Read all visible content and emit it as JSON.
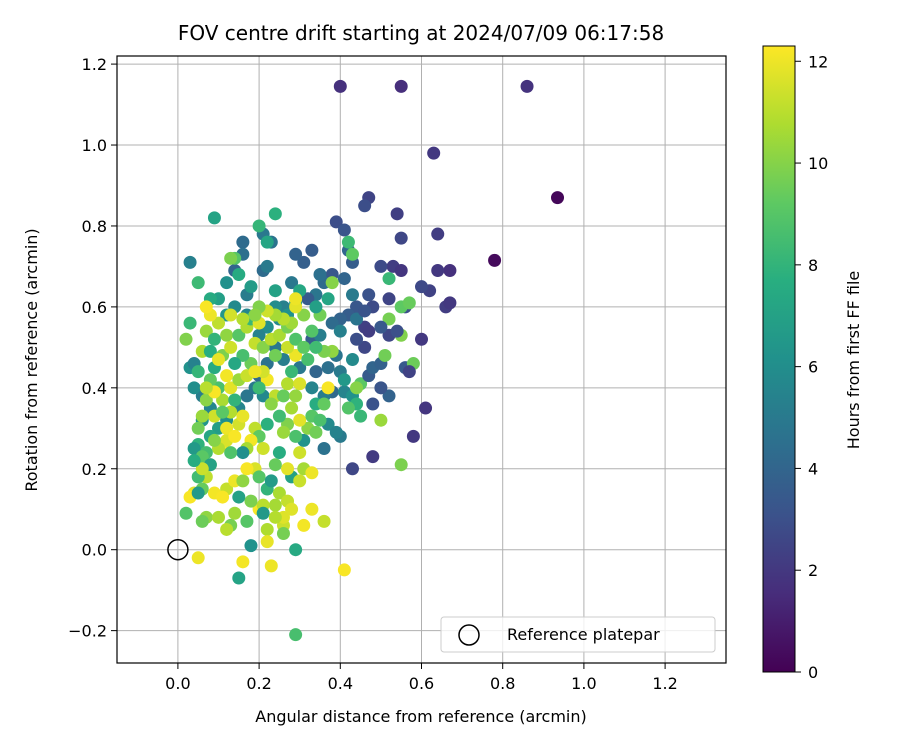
{
  "chart_data": {
    "type": "scatter",
    "title": "FOV centre drift starting at 2024/07/09 06:17:58",
    "xlabel": "Angular distance from reference (arcmin)",
    "ylabel": "Rotation from reference (arcmin)",
    "xlim": [
      -0.15,
      1.35
    ],
    "ylim": [
      -0.28,
      1.22
    ],
    "xticks": [
      0.0,
      0.2,
      0.4,
      0.6,
      0.8,
      1.0,
      1.2
    ],
    "yticks": [
      -0.2,
      0.0,
      0.2,
      0.4,
      0.6,
      0.8,
      1.0,
      1.2
    ],
    "xtick_labels": [
      "0.0",
      "0.2",
      "0.4",
      "0.6",
      "0.8",
      "1.0",
      "1.2"
    ],
    "ytick_labels": [
      "−0.2",
      "0.0",
      "0.2",
      "0.4",
      "0.6",
      "0.8",
      "1.0",
      "1.2"
    ],
    "grid": true,
    "colormap": "viridis",
    "colorbar": {
      "label": "Hours from first FF file",
      "range": [
        0,
        12.3
      ],
      "ticks": [
        0,
        2,
        4,
        6,
        8,
        10,
        12
      ],
      "tick_labels": [
        "0",
        "2",
        "4",
        "6",
        "8",
        "10",
        "12"
      ]
    },
    "reference_point": {
      "x": 0.0,
      "y": 0.0,
      "label": "Reference platepar",
      "marker": "open-circle"
    },
    "legend_placement": "lower-right",
    "points": [
      [
        0.935,
        0.87,
        0.2
      ],
      [
        0.78,
        0.715,
        0.3
      ],
      [
        0.86,
        1.145,
        1.8
      ],
      [
        0.55,
        1.145,
        1.6
      ],
      [
        0.4,
        1.145,
        1.7
      ],
      [
        0.63,
        0.98,
        2.0
      ],
      [
        0.54,
        0.83,
        2.3
      ],
      [
        0.47,
        0.87,
        2.5
      ],
      [
        0.46,
        0.85,
        2.9
      ],
      [
        0.64,
        0.78,
        2.2
      ],
      [
        0.55,
        0.77,
        2.6
      ],
      [
        0.67,
        0.69,
        1.7
      ],
      [
        0.64,
        0.69,
        2.0
      ],
      [
        0.66,
        0.6,
        2.2
      ],
      [
        0.67,
        0.61,
        2.0
      ],
      [
        0.62,
        0.64,
        2.4
      ],
      [
        0.6,
        0.52,
        2.0
      ],
      [
        0.61,
        0.35,
        1.9
      ],
      [
        0.58,
        0.28,
        2.0
      ],
      [
        0.48,
        0.23,
        2.1
      ],
      [
        0.43,
        0.2,
        2.6
      ],
      [
        0.48,
        0.36,
        3.1
      ],
      [
        0.52,
        0.38,
        3.9
      ],
      [
        0.56,
        0.45,
        3.4
      ],
      [
        0.53,
        0.7,
        2.2
      ],
      [
        0.55,
        0.69,
        1.9
      ],
      [
        0.5,
        0.7,
        2.8
      ],
      [
        0.52,
        0.62,
        2.5
      ],
      [
        0.56,
        0.6,
        3.0
      ],
      [
        0.46,
        0.5,
        2.6
      ],
      [
        0.46,
        0.55,
        2.3
      ],
      [
        0.44,
        0.52,
        2.9
      ],
      [
        0.47,
        0.63,
        3.1
      ],
      [
        0.44,
        0.6,
        3.3
      ],
      [
        0.42,
        0.58,
        3.6
      ],
      [
        0.4,
        0.57,
        3.9
      ],
      [
        0.39,
        0.81,
        2.9
      ],
      [
        0.41,
        0.79,
        3.2
      ],
      [
        0.42,
        0.74,
        4.1
      ],
      [
        0.43,
        0.71,
        3.6
      ],
      [
        0.38,
        0.68,
        3.3
      ],
      [
        0.41,
        0.67,
        4.0
      ],
      [
        0.36,
        0.66,
        4.3
      ],
      [
        0.34,
        0.63,
        4.8
      ],
      [
        0.32,
        0.62,
        3.5
      ],
      [
        0.31,
        0.71,
        3.7
      ],
      [
        0.29,
        0.73,
        3.9
      ],
      [
        0.33,
        0.74,
        3.6
      ],
      [
        0.35,
        0.68,
        4.5
      ],
      [
        0.38,
        0.56,
        4.3
      ],
      [
        0.39,
        0.48,
        4.7
      ],
      [
        0.37,
        0.45,
        4.5
      ],
      [
        0.4,
        0.44,
        5.0
      ],
      [
        0.38,
        0.39,
        4.2
      ],
      [
        0.36,
        0.38,
        5.2
      ],
      [
        0.41,
        0.39,
        5.5
      ],
      [
        0.37,
        0.31,
        5.8
      ],
      [
        0.36,
        0.25,
        4.6
      ],
      [
        0.4,
        0.28,
        5.0
      ],
      [
        0.39,
        0.29,
        5.4
      ],
      [
        0.34,
        0.44,
        4.0
      ],
      [
        0.33,
        0.52,
        3.7
      ],
      [
        0.35,
        0.53,
        5.2
      ],
      [
        0.33,
        0.4,
        5.5
      ],
      [
        0.3,
        0.45,
        4.9
      ],
      [
        0.28,
        0.66,
        4.9
      ],
      [
        0.26,
        0.6,
        5.3
      ],
      [
        0.24,
        0.6,
        5.9
      ],
      [
        0.23,
        0.76,
        4.7
      ],
      [
        0.21,
        0.78,
        4.9
      ],
      [
        0.16,
        0.76,
        4.3
      ],
      [
        0.14,
        0.69,
        4.0
      ],
      [
        0.16,
        0.73,
        4.5
      ],
      [
        0.17,
        0.63,
        5.1
      ],
      [
        0.17,
        0.58,
        5.6
      ],
      [
        0.21,
        0.69,
        4.3
      ],
      [
        0.22,
        0.7,
        5.0
      ],
      [
        0.14,
        0.6,
        5.8
      ],
      [
        0.12,
        0.58,
        6.4
      ],
      [
        0.1,
        0.62,
        6.9
      ],
      [
        0.08,
        0.62,
        7.5
      ],
      [
        0.03,
        0.71,
        5.3
      ],
      [
        0.09,
        0.82,
        7.1
      ],
      [
        0.2,
        0.8,
        8.1
      ],
      [
        0.24,
        0.83,
        7.8
      ],
      [
        0.22,
        0.76,
        7.2
      ],
      [
        0.14,
        0.72,
        9.0
      ],
      [
        0.13,
        0.72,
        9.8
      ],
      [
        0.15,
        0.68,
        7.5
      ],
      [
        0.05,
        0.66,
        8.3
      ],
      [
        0.12,
        0.66,
        6.1
      ],
      [
        0.18,
        0.65,
        6.7
      ],
      [
        0.24,
        0.64,
        7.0
      ],
      [
        0.3,
        0.64,
        7.3
      ],
      [
        0.29,
        0.61,
        6.5
      ],
      [
        0.27,
        0.58,
        6.2
      ],
      [
        0.25,
        0.57,
        5.7
      ],
      [
        0.22,
        0.55,
        6.0
      ],
      [
        0.2,
        0.53,
        5.4
      ],
      [
        0.24,
        0.5,
        4.9
      ],
      [
        0.26,
        0.47,
        5.2
      ],
      [
        0.22,
        0.46,
        4.6
      ],
      [
        0.2,
        0.43,
        4.2
      ],
      [
        0.19,
        0.4,
        5.0
      ],
      [
        0.21,
        0.38,
        5.7
      ],
      [
        0.17,
        0.38,
        4.8
      ],
      [
        0.15,
        0.35,
        5.5
      ],
      [
        0.12,
        0.32,
        6.1
      ],
      [
        0.1,
        0.3,
        6.8
      ],
      [
        0.08,
        0.28,
        7.2
      ],
      [
        0.06,
        0.32,
        6.4
      ],
      [
        0.08,
        0.35,
        5.6
      ],
      [
        0.06,
        0.38,
        5.1
      ],
      [
        0.04,
        0.4,
        6.0
      ],
      [
        0.03,
        0.45,
        6.2
      ],
      [
        0.04,
        0.46,
        5.4
      ],
      [
        0.03,
        0.56,
        8.2
      ],
      [
        0.02,
        0.52,
        9.9
      ],
      [
        0.07,
        0.54,
        10.4
      ],
      [
        0.06,
        0.49,
        10.8
      ],
      [
        0.05,
        0.44,
        8.1
      ],
      [
        0.09,
        0.45,
        7.5
      ],
      [
        0.1,
        0.4,
        8.7
      ],
      [
        0.08,
        0.42,
        9.3
      ],
      [
        0.07,
        0.37,
        10.1
      ],
      [
        0.11,
        0.37,
        10.7
      ],
      [
        0.09,
        0.33,
        11.4
      ],
      [
        0.11,
        0.26,
        12.1
      ],
      [
        0.12,
        0.27,
        11.6
      ],
      [
        0.1,
        0.25,
        10.9
      ],
      [
        0.05,
        0.26,
        7.9
      ],
      [
        0.07,
        0.24,
        8.5
      ],
      [
        0.04,
        0.25,
        6.6
      ],
      [
        0.06,
        0.23,
        9.1
      ],
      [
        0.08,
        0.21,
        10.3
      ],
      [
        0.07,
        0.18,
        11.1
      ],
      [
        0.05,
        0.18,
        8.4
      ],
      [
        0.06,
        0.15,
        9.4
      ],
      [
        0.04,
        0.14,
        11.8
      ],
      [
        0.03,
        0.13,
        12.2
      ],
      [
        0.07,
        0.08,
        10.2
      ],
      [
        0.06,
        0.07,
        9.5
      ],
      [
        0.02,
        0.09,
        8.9
      ],
      [
        0.1,
        0.08,
        10.7
      ],
      [
        0.13,
        0.06,
        9.7
      ],
      [
        0.12,
        0.05,
        11.0
      ],
      [
        0.05,
        -0.02,
        12.0
      ],
      [
        0.16,
        -0.03,
        12.1
      ],
      [
        0.15,
        -0.07,
        7.1
      ],
      [
        0.23,
        -0.04,
        12.0
      ],
      [
        0.18,
        0.01,
        6.2
      ],
      [
        0.22,
        0.05,
        10.8
      ],
      [
        0.26,
        0.06,
        11.3
      ],
      [
        0.29,
        0.0,
        7.4
      ],
      [
        0.29,
        -0.21,
        8.6
      ],
      [
        0.41,
        -0.05,
        12.2
      ],
      [
        0.33,
        0.1,
        12.0
      ],
      [
        0.26,
        0.08,
        11.7
      ],
      [
        0.24,
        0.11,
        10.6
      ],
      [
        0.2,
        0.1,
        12.2
      ],
      [
        0.21,
        0.11,
        11.0
      ],
      [
        0.18,
        0.12,
        9.8
      ],
      [
        0.15,
        0.13,
        7.0
      ],
      [
        0.12,
        0.15,
        11.2
      ],
      [
        0.14,
        0.17,
        12.0
      ],
      [
        0.16,
        0.17,
        10.2
      ],
      [
        0.19,
        0.2,
        11.6
      ],
      [
        0.17,
        0.2,
        12.2
      ],
      [
        0.2,
        0.18,
        9.0
      ],
      [
        0.22,
        0.15,
        8.0
      ],
      [
        0.23,
        0.17,
        6.7
      ],
      [
        0.25,
        0.14,
        10.7
      ],
      [
        0.27,
        0.12,
        11.2
      ],
      [
        0.28,
        0.1,
        11.7
      ],
      [
        0.28,
        0.18,
        7.0
      ],
      [
        0.3,
        0.17,
        11.3
      ],
      [
        0.31,
        0.2,
        10.6
      ],
      [
        0.33,
        0.19,
        12.0
      ],
      [
        0.27,
        0.2,
        11.8
      ],
      [
        0.24,
        0.21,
        9.4
      ],
      [
        0.25,
        0.24,
        7.6
      ],
      [
        0.3,
        0.24,
        11.4
      ],
      [
        0.31,
        0.27,
        6.3
      ],
      [
        0.29,
        0.28,
        8.7
      ],
      [
        0.32,
        0.3,
        10.1
      ],
      [
        0.34,
        0.29,
        9.6
      ],
      [
        0.27,
        0.31,
        9.9
      ],
      [
        0.25,
        0.33,
        8.4
      ],
      [
        0.22,
        0.31,
        7.8
      ],
      [
        0.19,
        0.3,
        11.1
      ],
      [
        0.2,
        0.28,
        9.2
      ],
      [
        0.21,
        0.25,
        11.4
      ],
      [
        0.18,
        0.27,
        12.1
      ],
      [
        0.17,
        0.25,
        10.6
      ],
      [
        0.16,
        0.24,
        6.1
      ],
      [
        0.13,
        0.24,
        8.8
      ],
      [
        0.12,
        0.3,
        12.0
      ],
      [
        0.14,
        0.28,
        12.2
      ],
      [
        0.15,
        0.31,
        11.5
      ],
      [
        0.16,
        0.33,
        11.9
      ],
      [
        0.13,
        0.34,
        10.9
      ],
      [
        0.11,
        0.34,
        9.1
      ],
      [
        0.14,
        0.37,
        8.0
      ],
      [
        0.13,
        0.4,
        11.8
      ],
      [
        0.12,
        0.43,
        12.1
      ],
      [
        0.15,
        0.42,
        10.4
      ],
      [
        0.17,
        0.43,
        11.3
      ],
      [
        0.18,
        0.46,
        9.5
      ],
      [
        0.16,
        0.48,
        8.6
      ],
      [
        0.14,
        0.46,
        7.3
      ],
      [
        0.11,
        0.48,
        9.8
      ],
      [
        0.13,
        0.5,
        11.4
      ],
      [
        0.12,
        0.53,
        10.2
      ],
      [
        0.15,
        0.53,
        9.0
      ],
      [
        0.17,
        0.55,
        10.8
      ],
      [
        0.18,
        0.57,
        8.2
      ],
      [
        0.2,
        0.56,
        11.7
      ],
      [
        0.19,
        0.51,
        11.2
      ],
      [
        0.21,
        0.5,
        10.0
      ],
      [
        0.23,
        0.52,
        11.0
      ],
      [
        0.24,
        0.48,
        9.6
      ],
      [
        0.22,
        0.42,
        12.1
      ],
      [
        0.21,
        0.44,
        11.5
      ],
      [
        0.19,
        0.44,
        12.0
      ],
      [
        0.2,
        0.4,
        8.3
      ],
      [
        0.24,
        0.38,
        11.1
      ],
      [
        0.23,
        0.36,
        10.1
      ],
      [
        0.26,
        0.38,
        9.4
      ],
      [
        0.27,
        0.41,
        10.9
      ],
      [
        0.28,
        0.44,
        8.2
      ],
      [
        0.29,
        0.48,
        12.0
      ],
      [
        0.27,
        0.5,
        11.3
      ],
      [
        0.25,
        0.53,
        10.7
      ],
      [
        0.27,
        0.55,
        9.7
      ],
      [
        0.29,
        0.52,
        8.8
      ],
      [
        0.31,
        0.5,
        9.2
      ],
      [
        0.32,
        0.47,
        8.6
      ],
      [
        0.3,
        0.41,
        11.6
      ],
      [
        0.29,
        0.38,
        10.3
      ],
      [
        0.28,
        0.35,
        10.6
      ],
      [
        0.26,
        0.29,
        10.4
      ],
      [
        0.3,
        0.32,
        11.8
      ],
      [
        0.33,
        0.33,
        9.0
      ],
      [
        0.35,
        0.32,
        8.7
      ],
      [
        0.34,
        0.36,
        7.6
      ],
      [
        0.36,
        0.36,
        9.3
      ],
      [
        0.37,
        0.4,
        12.2
      ],
      [
        0.38,
        0.49,
        10.2
      ],
      [
        0.36,
        0.49,
        9.8
      ],
      [
        0.34,
        0.5,
        8.4
      ],
      [
        0.33,
        0.54,
        8.9
      ],
      [
        0.35,
        0.58,
        9.6
      ],
      [
        0.37,
        0.62,
        7.2
      ],
      [
        0.34,
        0.6,
        6.9
      ],
      [
        0.31,
        0.58,
        10.0
      ],
      [
        0.29,
        0.6,
        11.8
      ],
      [
        0.29,
        0.62,
        12.0
      ],
      [
        0.28,
        0.56,
        10.5
      ],
      [
        0.26,
        0.57,
        11.0
      ],
      [
        0.24,
        0.58,
        10.6
      ],
      [
        0.22,
        0.59,
        11.4
      ],
      [
        0.2,
        0.6,
        9.9
      ],
      [
        0.19,
        0.58,
        10.1
      ],
      [
        0.16,
        0.57,
        10.9
      ],
      [
        0.13,
        0.58,
        11.5
      ],
      [
        0.1,
        0.56,
        11.1
      ],
      [
        0.08,
        0.58,
        12.0
      ],
      [
        0.07,
        0.6,
        12.2
      ],
      [
        0.09,
        0.52,
        8.0
      ],
      [
        0.08,
        0.49,
        7.7
      ],
      [
        0.1,
        0.47,
        11.9
      ],
      [
        0.09,
        0.39,
        12.2
      ],
      [
        0.07,
        0.4,
        11.0
      ],
      [
        0.06,
        0.33,
        10.4
      ],
      [
        0.05,
        0.3,
        9.6
      ],
      [
        0.09,
        0.27,
        10.0
      ],
      [
        0.08,
        0.21,
        7.0
      ],
      [
        0.06,
        0.2,
        11.3
      ],
      [
        0.04,
        0.22,
        7.6
      ],
      [
        0.05,
        0.14,
        6.6
      ],
      [
        0.09,
        0.14,
        12.1
      ],
      [
        0.11,
        0.13,
        12.2
      ],
      [
        0.14,
        0.09,
        10.5
      ],
      [
        0.17,
        0.07,
        9.0
      ],
      [
        0.21,
        0.09,
        6.6
      ],
      [
        0.24,
        0.08,
        10.9
      ],
      [
        0.22,
        0.02,
        11.9
      ],
      [
        0.26,
        0.04,
        9.7
      ],
      [
        0.31,
        0.06,
        12.1
      ],
      [
        0.36,
        0.07,
        11.2
      ],
      [
        0.43,
        0.63,
        5.0
      ],
      [
        0.44,
        0.57,
        4.7
      ],
      [
        0.4,
        0.54,
        5.3
      ],
      [
        0.43,
        0.47,
        5.8
      ],
      [
        0.41,
        0.42,
        6.5
      ],
      [
        0.45,
        0.41,
        9.1
      ],
      [
        0.43,
        0.38,
        6.2
      ],
      [
        0.44,
        0.36,
        7.9
      ],
      [
        0.42,
        0.35,
        8.9
      ],
      [
        0.45,
        0.33,
        8.2
      ],
      [
        0.47,
        0.43,
        3.5
      ],
      [
        0.48,
        0.45,
        4.0
      ],
      [
        0.5,
        0.46,
        3.8
      ],
      [
        0.5,
        0.4,
        3.2
      ],
      [
        0.51,
        0.48,
        9.6
      ],
      [
        0.52,
        0.57,
        9.7
      ],
      [
        0.52,
        0.67,
        8.2
      ],
      [
        0.55,
        0.6,
        9.2
      ],
      [
        0.57,
        0.61,
        9.4
      ],
      [
        0.55,
        0.53,
        9.9
      ],
      [
        0.58,
        0.46,
        9.5
      ],
      [
        0.55,
        0.21,
        9.8
      ],
      [
        0.5,
        0.32,
        10.4
      ],
      [
        0.44,
        0.4,
        10.0
      ],
      [
        0.38,
        0.66,
        10.0
      ],
      [
        0.43,
        0.73,
        9.2
      ],
      [
        0.42,
        0.76,
        8.3
      ],
      [
        0.47,
        0.54,
        2.2
      ],
      [
        0.52,
        0.53,
        2.6
      ],
      [
        0.54,
        0.54,
        3.0
      ],
      [
        0.5,
        0.55,
        3.4
      ],
      [
        0.48,
        0.6,
        2.8
      ],
      [
        0.46,
        0.59,
        3.2
      ],
      [
        0.57,
        0.44,
        2.4
      ],
      [
        0.6,
        0.65,
        2.7
      ]
    ]
  }
}
